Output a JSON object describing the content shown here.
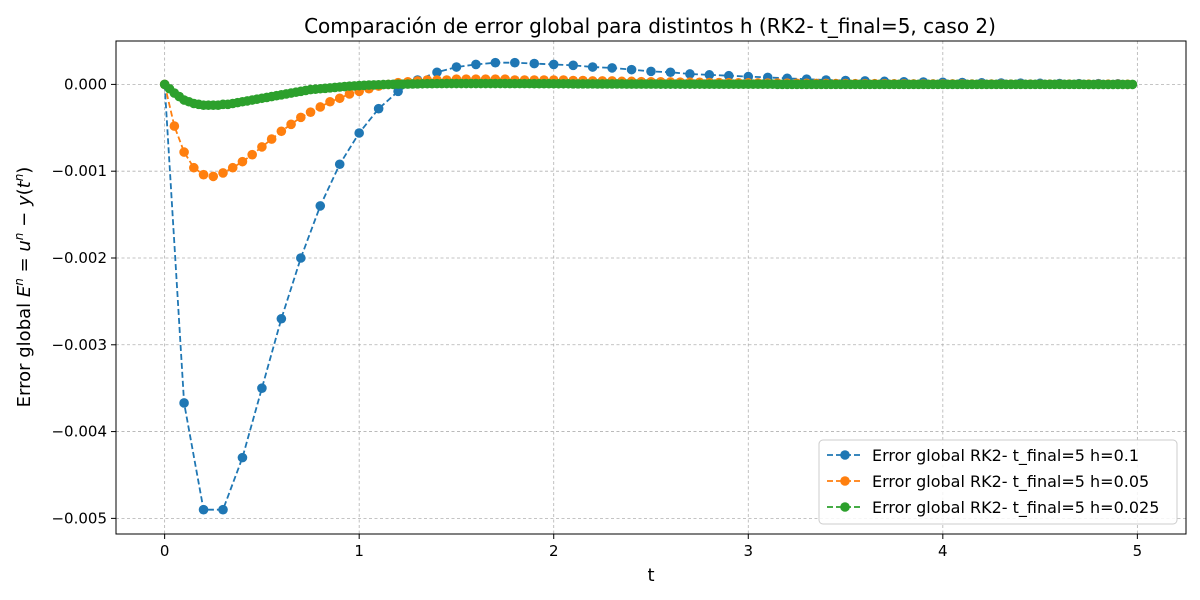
{
  "chart_data": {
    "type": "line",
    "title": "Comparación de error global para distintos h (RK2- t_final=5, caso 2)",
    "xlabel": "t",
    "ylabel": "Error global E^n = u^n − y(t^n)",
    "xlim": [
      -0.25,
      5.25
    ],
    "ylim": [
      -0.00518,
      0.0005
    ],
    "x_ticks": [
      0,
      1,
      2,
      3,
      4,
      5
    ],
    "x_tick_labels": [
      "0",
      "1",
      "2",
      "3",
      "4",
      "5"
    ],
    "y_ticks": [
      0.0,
      -0.001,
      -0.002,
      -0.003,
      -0.004,
      -0.005
    ],
    "y_tick_labels": [
      "0.000",
      "−0.001",
      "−0.002",
      "−0.003",
      "−0.004",
      "−0.005"
    ],
    "grid": true,
    "legend_position": "lower-right",
    "series": [
      {
        "name": "Error global RK2- t_final=5 h=0.1",
        "color": "#1f77b4",
        "h": 0.1,
        "y": [
          0.0,
          -0.00367,
          -0.0049,
          -0.0049,
          -0.0043,
          -0.0035,
          -0.0027,
          -0.002,
          -0.0014,
          -0.00092,
          -0.00056,
          -0.00028,
          -8e-05,
          5e-05,
          0.00014,
          0.0002,
          0.00023,
          0.00025,
          0.00025,
          0.00024,
          0.00023,
          0.00022,
          0.0002,
          0.00019,
          0.00017,
          0.00015,
          0.00014,
          0.00012,
          0.00011,
          0.0001,
          9e-05,
          8e-05,
          7e-05,
          6e-05,
          5e-05,
          4.5e-05,
          4e-05,
          3.5e-05,
          3e-05,
          2.7e-05,
          2.4e-05,
          2.1e-05,
          1.8e-05,
          1.6e-05,
          1.4e-05,
          1.2e-05,
          1e-05,
          9e-06,
          8e-06,
          7e-06
        ]
      },
      {
        "name": "Error global RK2- t_final=5 h=0.05",
        "color": "#ff7f0e",
        "h": 0.05,
        "y": [
          0.0,
          -0.00048,
          -0.00078,
          -0.00096,
          -0.00104,
          -0.00106,
          -0.00102,
          -0.00096,
          -0.00089,
          -0.00081,
          -0.00072,
          -0.00063,
          -0.00054,
          -0.00046,
          -0.00038,
          -0.00032,
          -0.00026,
          -0.0002,
          -0.00016,
          -0.00011,
          -8e-05,
          -5e-05,
          -2e-05,
          0.0,
          2e-05,
          3e-05,
          4e-05,
          5e-05,
          5e-05,
          5e-05,
          6e-05,
          6e-05,
          6e-05,
          6e-05,
          6e-05,
          6e-05,
          5e-05,
          5e-05,
          5e-05,
          5e-05,
          5e-05,
          5e-05,
          4.5e-05,
          4.5e-05,
          4e-05,
          4e-05,
          4e-05,
          3.5e-05,
          3.5e-05,
          3.2e-05,
          3e-05,
          3e-05,
          2.8e-05,
          2.6e-05,
          2.5e-05,
          2.4e-05,
          2.2e-05,
          2.1e-05,
          2e-05,
          1.9e-05,
          1.8e-05,
          1.7e-05,
          1.6e-05,
          1.5e-05,
          1.4e-05,
          1.3e-05,
          1.2e-05,
          1.1e-05,
          1.1e-05,
          1e-05,
          1e-05,
          9e-06,
          9e-06,
          8e-06,
          8e-06,
          7e-06,
          7e-06,
          6e-06,
          6e-06,
          6e-06,
          5e-06,
          5e-06,
          5e-06,
          4e-06,
          4e-06,
          4e-06,
          4e-06,
          3e-06,
          3e-06,
          3e-06,
          3e-06,
          3e-06,
          2e-06,
          2e-06,
          2e-06,
          2e-06,
          2e-06,
          2e-06,
          2e-06,
          1e-06
        ]
      },
      {
        "name": "Error global RK2- t_final=5 h=0.025",
        "color": "#2ca02c",
        "h": 0.025,
        "y": [
          0.0,
          -5e-05,
          -0.0001,
          -0.00014,
          -0.00018,
          -0.0002,
          -0.00022,
          -0.00023,
          -0.00024,
          -0.00024,
          -0.00024,
          -0.00024,
          -0.00023,
          -0.00023,
          -0.00022,
          -0.00021,
          -0.0002,
          -0.00019,
          -0.00018,
          -0.00017,
          -0.00016,
          -0.00015,
          -0.00014,
          -0.00013,
          -0.00012,
          -0.00011,
          -0.0001,
          -9e-05,
          -8e-05,
          -7e-05,
          -6e-05,
          -5.5e-05,
          -5e-05,
          -4.5e-05,
          -4e-05,
          -3.5e-05,
          -3e-05,
          -2.5e-05,
          -2e-05,
          -1.7e-05,
          -1.4e-05,
          -1.1e-05,
          -8e-06,
          -6e-06,
          -4e-06,
          -2e-06,
          0.0,
          1e-06,
          2e-06,
          3e-06,
          4e-06,
          5e-06,
          6e-06,
          7e-06,
          8e-06,
          8e-06,
          9e-06,
          9e-06,
          1e-05,
          1e-05,
          1e-05,
          1e-05,
          1e-05,
          1e-05,
          1e-05,
          1e-05,
          1e-05,
          1e-05,
          1e-05,
          1e-05,
          1e-05,
          9e-06,
          9e-06,
          9e-06,
          9e-06,
          9e-06,
          8e-06,
          8e-06,
          8e-06,
          8e-06,
          7e-06,
          7e-06,
          7e-06,
          7e-06,
          6e-06,
          6e-06,
          6e-06,
          6e-06,
          6e-06,
          5e-06,
          5e-06,
          5e-06,
          5e-06,
          5e-06,
          5e-06,
          4e-06,
          4e-06,
          4e-06,
          4e-06,
          4e-06,
          4e-06,
          4e-06,
          3e-06,
          3e-06,
          3e-06,
          3e-06,
          3e-06,
          3e-06,
          3e-06,
          3e-06,
          3e-06,
          2e-06,
          2e-06,
          2e-06,
          2e-06,
          2e-06,
          2e-06,
          2e-06,
          2e-06,
          2e-06,
          2e-06,
          2e-06,
          2e-06,
          2e-06,
          2e-06,
          2e-06,
          1e-06,
          1e-06,
          1e-06,
          1e-06,
          1e-06,
          1e-06,
          1e-06,
          1e-06,
          1e-06,
          1e-06,
          1e-06,
          1e-06,
          1e-06,
          1e-06,
          1e-06,
          1e-06,
          1e-06,
          1e-06,
          1e-06,
          1e-06,
          1e-06,
          1e-06,
          1e-06,
          1e-06,
          1e-06,
          1e-06,
          1e-06,
          1e-06,
          1e-06,
          1e-06,
          1e-06,
          1e-06,
          1e-06,
          1e-06,
          1e-06,
          1e-06,
          1e-06,
          1e-06,
          1e-06,
          1e-06,
          1e-06,
          1e-06,
          1e-06,
          1e-06,
          1e-06,
          1e-06,
          1e-06,
          1e-06,
          1e-06,
          1e-06,
          1e-06,
          1e-06,
          1e-06,
          1e-06,
          1e-06,
          1e-06,
          1e-06,
          1e-06,
          1e-06,
          1e-06,
          1e-06,
          1e-06,
          1e-06,
          1e-06,
          0.0,
          0.0,
          0.0,
          0.0,
          0.0,
          0.0,
          0.0,
          0.0,
          0.0,
          0.0
        ]
      }
    ]
  }
}
